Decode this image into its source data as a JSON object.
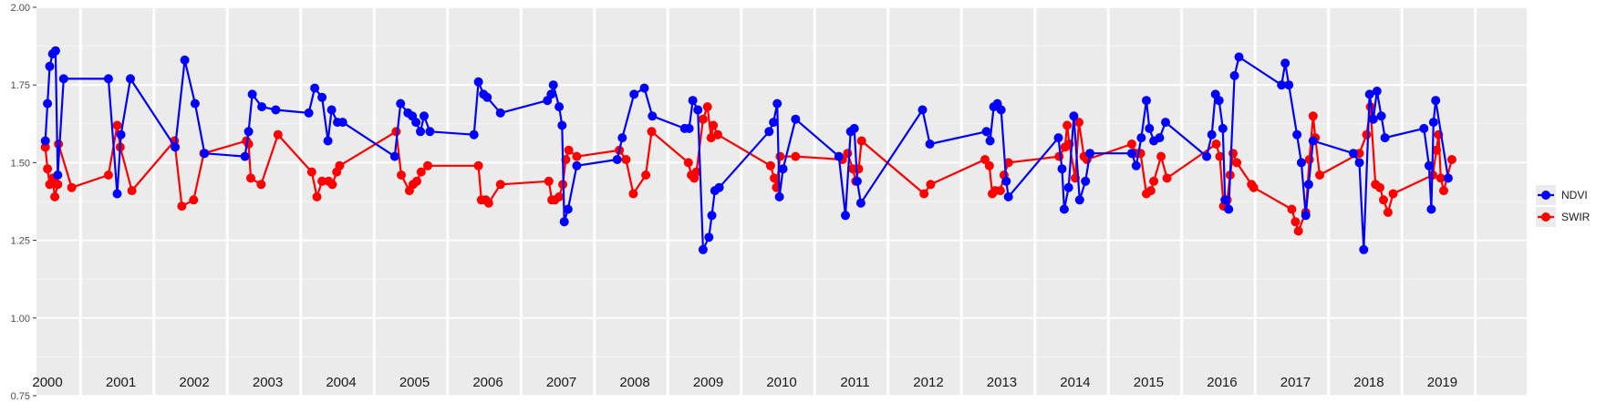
{
  "chart_data": {
    "type": "line",
    "title": "",
    "xlabel": "",
    "ylabel": "",
    "ylim": [
      0.75,
      2.0
    ],
    "y_ticks": [
      "0.75",
      "1.00",
      "1.25",
      "1.50",
      "1.75",
      "2.00"
    ],
    "x_range": [
      1999.9,
      2020.2
    ],
    "years": [
      "2000",
      "2001",
      "2002",
      "2003",
      "2004",
      "2005",
      "2006",
      "2007",
      "2008",
      "2009",
      "2010",
      "2011",
      "2012",
      "2013",
      "2014",
      "2015",
      "2016",
      "2017",
      "2018",
      "2019"
    ],
    "grid": true,
    "legend_position": "right",
    "series": [
      {
        "name": "NDVI",
        "color": "#0000ff",
        "points": [
          [
            2000.02,
            1.57
          ],
          [
            2000.05,
            1.69
          ],
          [
            2000.08,
            1.81
          ],
          [
            2000.12,
            1.85
          ],
          [
            2000.16,
            1.86
          ],
          [
            2000.19,
            1.46
          ],
          [
            2000.27,
            1.77
          ],
          [
            2000.88,
            1.77
          ],
          [
            2001.0,
            1.4
          ],
          [
            2001.05,
            1.59
          ],
          [
            2001.18,
            1.77
          ],
          [
            2001.79,
            1.55
          ],
          [
            2001.92,
            1.83
          ],
          [
            2002.06,
            1.69
          ],
          [
            2002.19,
            1.53
          ],
          [
            2002.74,
            1.52
          ],
          [
            2002.79,
            1.6
          ],
          [
            2002.84,
            1.72
          ],
          [
            2002.97,
            1.68
          ],
          [
            2003.16,
            1.67
          ],
          [
            2003.61,
            1.66
          ],
          [
            2003.69,
            1.74
          ],
          [
            2003.79,
            1.71
          ],
          [
            2003.87,
            1.57
          ],
          [
            2003.92,
            1.67
          ],
          [
            2004.0,
            1.63
          ],
          [
            2004.07,
            1.63
          ],
          [
            2004.78,
            1.52
          ],
          [
            2004.86,
            1.69
          ],
          [
            2004.96,
            1.66
          ],
          [
            2005.02,
            1.65
          ],
          [
            2005.07,
            1.63
          ],
          [
            2005.13,
            1.6
          ],
          [
            2005.18,
            1.65
          ],
          [
            2005.26,
            1.6
          ],
          [
            2005.86,
            1.59
          ],
          [
            2005.92,
            1.76
          ],
          [
            2005.99,
            1.72
          ],
          [
            2006.04,
            1.71
          ],
          [
            2006.22,
            1.66
          ],
          [
            2006.86,
            1.7
          ],
          [
            2006.91,
            1.72
          ],
          [
            2006.94,
            1.75
          ],
          [
            2007.02,
            1.68
          ],
          [
            2007.06,
            1.62
          ],
          [
            2007.09,
            1.31
          ],
          [
            2007.14,
            1.35
          ],
          [
            2007.26,
            1.49
          ],
          [
            2007.81,
            1.51
          ],
          [
            2007.88,
            1.58
          ],
          [
            2008.04,
            1.72
          ],
          [
            2008.18,
            1.74
          ],
          [
            2008.29,
            1.65
          ],
          [
            2008.73,
            1.61
          ],
          [
            2008.79,
            1.61
          ],
          [
            2008.84,
            1.7
          ],
          [
            2008.91,
            1.67
          ],
          [
            2008.98,
            1.22
          ],
          [
            2009.06,
            1.26
          ],
          [
            2009.1,
            1.33
          ],
          [
            2009.14,
            1.41
          ],
          [
            2009.2,
            1.42
          ],
          [
            2009.88,
            1.6
          ],
          [
            2009.94,
            1.63
          ],
          [
            2009.99,
            1.69
          ],
          [
            2010.02,
            1.39
          ],
          [
            2010.07,
            1.48
          ],
          [
            2010.24,
            1.64
          ],
          [
            2010.83,
            1.52
          ],
          [
            2010.92,
            1.33
          ],
          [
            2010.99,
            1.6
          ],
          [
            2011.04,
            1.61
          ],
          [
            2011.08,
            1.44
          ],
          [
            2011.13,
            1.37
          ],
          [
            2011.97,
            1.67
          ],
          [
            2012.07,
            1.56
          ],
          [
            2012.84,
            1.6
          ],
          [
            2012.89,
            1.57
          ],
          [
            2012.94,
            1.68
          ],
          [
            2012.99,
            1.69
          ],
          [
            2013.04,
            1.67
          ],
          [
            2013.11,
            1.44
          ],
          [
            2013.14,
            1.39
          ],
          [
            2013.82,
            1.58
          ],
          [
            2013.87,
            1.48
          ],
          [
            2013.9,
            1.35
          ],
          [
            2013.96,
            1.42
          ],
          [
            2014.03,
            1.65
          ],
          [
            2014.11,
            1.38
          ],
          [
            2014.19,
            1.44
          ],
          [
            2014.25,
            1.53
          ],
          [
            2014.82,
            1.53
          ],
          [
            2014.88,
            1.49
          ],
          [
            2014.95,
            1.58
          ],
          [
            2015.02,
            1.7
          ],
          [
            2015.06,
            1.61
          ],
          [
            2015.12,
            1.57
          ],
          [
            2015.2,
            1.58
          ],
          [
            2015.28,
            1.63
          ],
          [
            2015.84,
            1.52
          ],
          [
            2015.91,
            1.59
          ],
          [
            2015.96,
            1.72
          ],
          [
            2016.01,
            1.7
          ],
          [
            2016.06,
            1.61
          ],
          [
            2016.09,
            1.38
          ],
          [
            2016.14,
            1.35
          ],
          [
            2016.22,
            1.78
          ],
          [
            2016.28,
            1.84
          ],
          [
            2016.86,
            1.75
          ],
          [
            2016.91,
            1.82
          ],
          [
            2016.96,
            1.75
          ],
          [
            2017.07,
            1.59
          ],
          [
            2017.13,
            1.5
          ],
          [
            2017.19,
            1.33
          ],
          [
            2017.23,
            1.43
          ],
          [
            2017.29,
            1.57
          ],
          [
            2017.84,
            1.53
          ],
          [
            2017.92,
            1.5
          ],
          [
            2017.98,
            1.22
          ],
          [
            2018.06,
            1.72
          ],
          [
            2018.11,
            1.64
          ],
          [
            2018.16,
            1.73
          ],
          [
            2018.22,
            1.65
          ],
          [
            2018.27,
            1.58
          ],
          [
            2018.8,
            1.61
          ],
          [
            2018.87,
            1.49
          ],
          [
            2018.9,
            1.35
          ],
          [
            2018.93,
            1.63
          ],
          [
            2018.96,
            1.7
          ],
          [
            2019.13,
            1.45
          ]
        ]
      },
      {
        "name": "SWIR",
        "color": "#ff0000",
        "points": [
          [
            2000.02,
            1.55
          ],
          [
            2000.05,
            1.48
          ],
          [
            2000.08,
            1.43
          ],
          [
            2000.12,
            1.45
          ],
          [
            2000.15,
            1.39
          ],
          [
            2000.19,
            1.43
          ],
          [
            2000.2,
            1.56
          ],
          [
            2000.38,
            1.42
          ],
          [
            2000.88,
            1.46
          ],
          [
            2001.0,
            1.62
          ],
          [
            2001.04,
            1.55
          ],
          [
            2001.2,
            1.41
          ],
          [
            2001.78,
            1.57
          ],
          [
            2001.88,
            1.36
          ],
          [
            2002.04,
            1.38
          ],
          [
            2002.18,
            1.53
          ],
          [
            2002.76,
            1.57
          ],
          [
            2002.79,
            1.56
          ],
          [
            2002.82,
            1.45
          ],
          [
            2002.96,
            1.43
          ],
          [
            2003.19,
            1.59
          ],
          [
            2003.65,
            1.47
          ],
          [
            2003.72,
            1.39
          ],
          [
            2003.79,
            1.44
          ],
          [
            2003.88,
            1.44
          ],
          [
            2003.93,
            1.43
          ],
          [
            2003.99,
            1.47
          ],
          [
            2004.03,
            1.49
          ],
          [
            2004.8,
            1.6
          ],
          [
            2004.87,
            1.46
          ],
          [
            2004.98,
            1.41
          ],
          [
            2005.03,
            1.43
          ],
          [
            2005.08,
            1.44
          ],
          [
            2005.14,
            1.47
          ],
          [
            2005.23,
            1.49
          ],
          [
            2005.92,
            1.49
          ],
          [
            2005.96,
            1.38
          ],
          [
            2006.02,
            1.38
          ],
          [
            2006.06,
            1.37
          ],
          [
            2006.22,
            1.43
          ],
          [
            2006.88,
            1.44
          ],
          [
            2006.92,
            1.38
          ],
          [
            2006.96,
            1.38
          ],
          [
            2007.02,
            1.39
          ],
          [
            2007.07,
            1.43
          ],
          [
            2007.11,
            1.51
          ],
          [
            2007.15,
            1.54
          ],
          [
            2007.26,
            1.52
          ],
          [
            2007.84,
            1.54
          ],
          [
            2007.93,
            1.51
          ],
          [
            2008.03,
            1.4
          ],
          [
            2008.2,
            1.46
          ],
          [
            2008.28,
            1.6
          ],
          [
            2008.78,
            1.5
          ],
          [
            2008.82,
            1.46
          ],
          [
            2008.86,
            1.45
          ],
          [
            2008.89,
            1.47
          ],
          [
            2008.98,
            1.64
          ],
          [
            2009.04,
            1.68
          ],
          [
            2009.09,
            1.58
          ],
          [
            2009.12,
            1.62
          ],
          [
            2009.18,
            1.59
          ],
          [
            2009.9,
            1.49
          ],
          [
            2009.95,
            1.45
          ],
          [
            2009.98,
            1.42
          ],
          [
            2010.03,
            1.52
          ],
          [
            2010.24,
            1.52
          ],
          [
            2010.88,
            1.51
          ],
          [
            2010.95,
            1.53
          ],
          [
            2011.02,
            1.48
          ],
          [
            2011.06,
            1.44
          ],
          [
            2011.1,
            1.48
          ],
          [
            2011.14,
            1.57
          ],
          [
            2011.99,
            1.4
          ],
          [
            2012.08,
            1.43
          ],
          [
            2012.82,
            1.51
          ],
          [
            2012.88,
            1.49
          ],
          [
            2012.92,
            1.4
          ],
          [
            2012.96,
            1.41
          ],
          [
            2013.03,
            1.41
          ],
          [
            2013.08,
            1.46
          ],
          [
            2013.14,
            1.5
          ],
          [
            2013.83,
            1.52
          ],
          [
            2013.91,
            1.55
          ],
          [
            2013.94,
            1.62
          ],
          [
            2013.97,
            1.56
          ],
          [
            2014.05,
            1.45
          ],
          [
            2014.1,
            1.63
          ],
          [
            2014.17,
            1.52
          ],
          [
            2014.21,
            1.51
          ],
          [
            2014.82,
            1.56
          ],
          [
            2014.88,
            1.53
          ],
          [
            2014.94,
            1.53
          ],
          [
            2015.02,
            1.4
          ],
          [
            2015.08,
            1.41
          ],
          [
            2015.12,
            1.44
          ],
          [
            2015.22,
            1.52
          ],
          [
            2015.3,
            1.45
          ],
          [
            2015.97,
            1.56
          ],
          [
            2016.02,
            1.52
          ],
          [
            2016.07,
            1.36
          ],
          [
            2016.12,
            1.38
          ],
          [
            2016.16,
            1.46
          ],
          [
            2016.2,
            1.53
          ],
          [
            2016.25,
            1.5
          ],
          [
            2016.45,
            1.43
          ],
          [
            2016.48,
            1.42
          ],
          [
            2017.0,
            1.35
          ],
          [
            2017.05,
            1.31
          ],
          [
            2017.09,
            1.28
          ],
          [
            2017.19,
            1.34
          ],
          [
            2017.24,
            1.51
          ],
          [
            2017.29,
            1.65
          ],
          [
            2017.32,
            1.58
          ],
          [
            2017.38,
            1.46
          ],
          [
            2017.92,
            1.53
          ],
          [
            2018.02,
            1.59
          ],
          [
            2018.07,
            1.68
          ],
          [
            2018.14,
            1.43
          ],
          [
            2018.2,
            1.42
          ],
          [
            2018.25,
            1.38
          ],
          [
            2018.31,
            1.34
          ],
          [
            2018.38,
            1.4
          ],
          [
            2018.92,
            1.46
          ],
          [
            2018.97,
            1.54
          ],
          [
            2019.0,
            1.59
          ],
          [
            2019.03,
            1.45
          ],
          [
            2019.07,
            1.41
          ],
          [
            2019.18,
            1.51
          ]
        ]
      }
    ]
  }
}
